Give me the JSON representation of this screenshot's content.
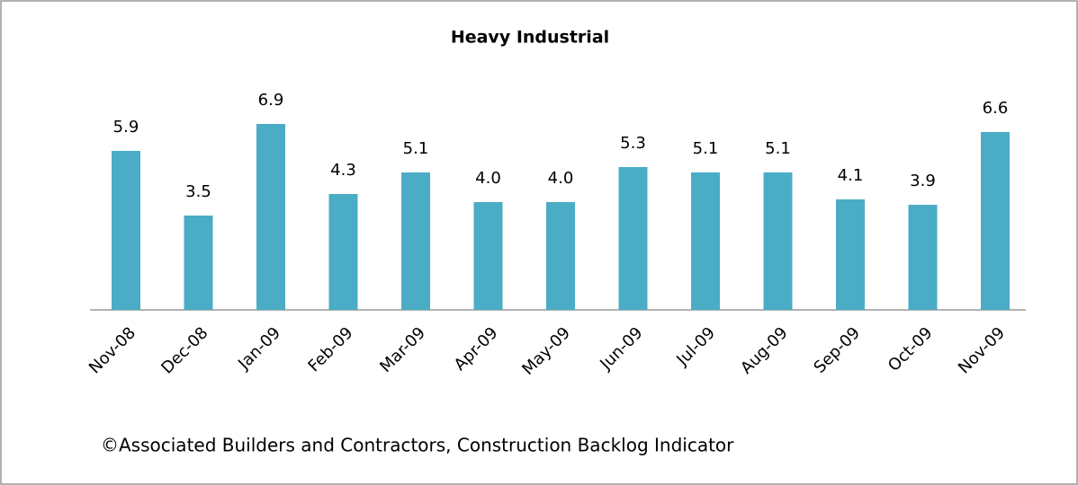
{
  "chart_data": {
    "type": "bar",
    "title": "Heavy Industrial",
    "categories": [
      "Nov-08",
      "Dec-08",
      "Jan-09",
      "Feb-09",
      "Mar-09",
      "Apr-09",
      "May-09",
      "Jun-09",
      "Jul-09",
      "Aug-09",
      "Sep-09",
      "Oct-09",
      "Nov-09"
    ],
    "values": [
      5.9,
      3.5,
      6.9,
      4.3,
      5.1,
      4.0,
      4.0,
      5.3,
      5.1,
      5.1,
      4.1,
      3.9,
      6.6
    ],
    "value_labels": [
      "5.9",
      "3.5",
      "6.9",
      "4.3",
      "5.1",
      "4.0",
      "4.0",
      "5.3",
      "5.1",
      "5.1",
      "4.1",
      "3.9",
      "6.6"
    ],
    "color": "#4bacc6",
    "note": "©Associated Builders and Contractors, Construction Backlog Indicator"
  }
}
